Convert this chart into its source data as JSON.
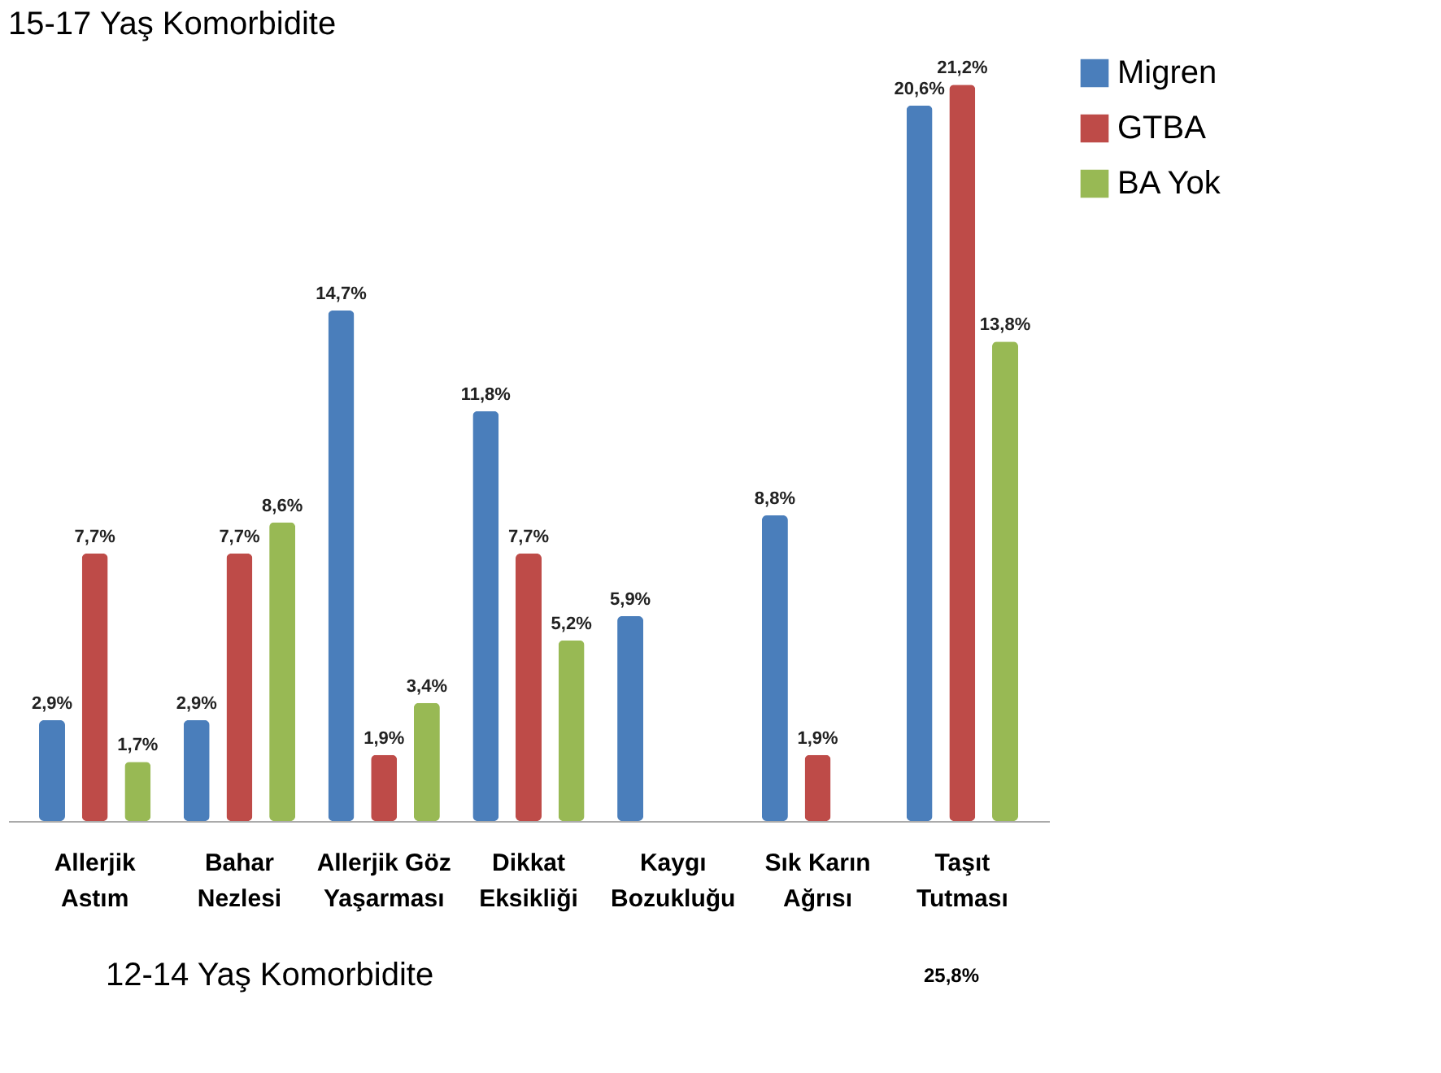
{
  "chart_data": {
    "type": "bar",
    "title": "15-17 Yaş Komorbidite",
    "categories": [
      "Allerjik Astım",
      "Bahar Nezlesi",
      "Allerjik Göz Yaşarması",
      "Dikkat Eksikliği",
      "Kaygı Bozukluğu",
      "Sık Karın Ağrısı",
      "Taşıt Tutması"
    ],
    "series": [
      {
        "name": "Migren",
        "color": "#4a7ebb",
        "values": [
          2.9,
          2.9,
          14.7,
          11.8,
          5.9,
          8.8,
          20.6
        ],
        "value_labels": [
          "2,9%",
          "2,9%",
          "14,7%",
          "11,8%",
          "5,9%",
          "8,8%",
          "20,6%"
        ]
      },
      {
        "name": "GTBA",
        "color": "#be4b48",
        "values": [
          7.7,
          7.7,
          1.9,
          7.7,
          0,
          1.9,
          21.2
        ],
        "value_labels": [
          "7,7%",
          "7,7%",
          "1,9%",
          "7,7%",
          null,
          "1,9%",
          "21,2%"
        ]
      },
      {
        "name": "BA Yok",
        "color": "#98b954",
        "values": [
          1.7,
          8.6,
          3.4,
          5.2,
          0,
          0,
          13.8
        ],
        "value_labels": [
          "1,7%",
          "8,6%",
          "3,4%",
          "5,2%",
          null,
          null,
          "13,8%"
        ]
      }
    ],
    "legend": "right",
    "tick_labels": "x",
    "grid": false,
    "annotations": [
      "12-14 Yaş Komorbidite",
      "25,8%"
    ]
  }
}
